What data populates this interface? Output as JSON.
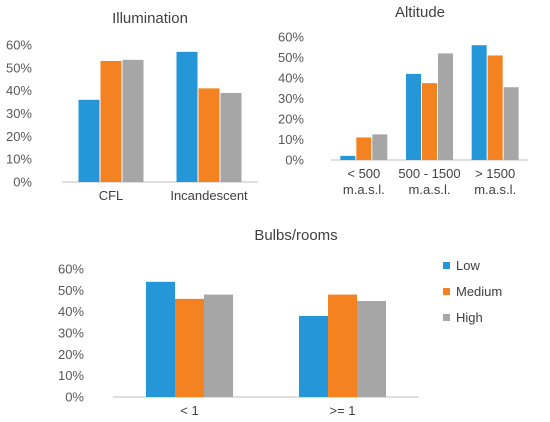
{
  "colors": {
    "Low": "#2596d8",
    "Medium": "#f58220",
    "High": "#a6a6a6",
    "axis": "#bfbfbf",
    "grid": "#d9d9d9",
    "text": "#404040"
  },
  "legend": [
    {
      "name": "Low",
      "color": "#2596d8"
    },
    {
      "name": "Medium",
      "color": "#f58220"
    },
    {
      "name": "High",
      "color": "#a6a6a6"
    }
  ],
  "chart_data": [
    {
      "type": "bar",
      "title": "Illumination",
      "categories": [
        [
          "CFL"
        ],
        [
          "Incandescent"
        ]
      ],
      "series": [
        {
          "name": "Low",
          "values": [
            0.36,
            0.57
          ]
        },
        {
          "name": "Medium",
          "values": [
            0.53,
            0.41
          ]
        },
        {
          "name": "High",
          "values": [
            0.535,
            0.39
          ]
        }
      ],
      "ylim": [
        0,
        0.6
      ],
      "yticks": [
        "0%",
        "10%",
        "20%",
        "30%",
        "40%",
        "50%",
        "60%"
      ],
      "grid": false
    },
    {
      "type": "bar",
      "title": "Altitude",
      "categories": [
        [
          "< 500",
          "m.a.s.l."
        ],
        [
          "500 - 1500",
          "m.a.s.l."
        ],
        [
          "> 1500",
          "m.a.s.l."
        ]
      ],
      "series": [
        {
          "name": "Low",
          "values": [
            0.02,
            0.42,
            0.56
          ]
        },
        {
          "name": "Medium",
          "values": [
            0.11,
            0.375,
            0.51
          ]
        },
        {
          "name": "High",
          "values": [
            0.125,
            0.52,
            0.355
          ]
        }
      ],
      "ylim": [
        0,
        0.6
      ],
      "yticks": [
        "0%",
        "10%",
        "20%",
        "30%",
        "40%",
        "50%",
        "60%"
      ],
      "grid": false
    },
    {
      "type": "bar",
      "title": "Bulbs/rooms",
      "categories": [
        [
          "< 1"
        ],
        [
          ">= 1"
        ]
      ],
      "series": [
        {
          "name": "Low",
          "values": [
            0.54,
            0.38
          ]
        },
        {
          "name": "Medium",
          "values": [
            0.46,
            0.48
          ]
        },
        {
          "name": "High",
          "values": [
            0.48,
            0.45
          ]
        }
      ],
      "ylim": [
        0,
        0.6
      ],
      "yticks": [
        "0%",
        "10%",
        "20%",
        "30%",
        "40%",
        "50%",
        "60%"
      ],
      "grid": false,
      "legend_position": "right"
    }
  ]
}
